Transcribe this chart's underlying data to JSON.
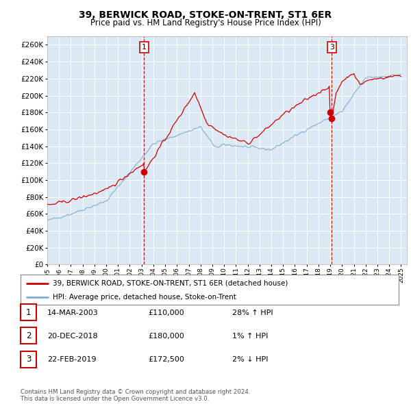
{
  "title": "39, BERWICK ROAD, STOKE-ON-TRENT, ST1 6ER",
  "subtitle": "Price paid vs. HM Land Registry's House Price Index (HPI)",
  "background_color": "#dce9f5",
  "fig_bg_color": "#ffffff",
  "ylim": [
    0,
    270000
  ],
  "yticks": [
    0,
    20000,
    40000,
    60000,
    80000,
    100000,
    120000,
    140000,
    160000,
    180000,
    200000,
    220000,
    240000,
    260000
  ],
  "x_start_year": 1995,
  "x_end_year": 2025,
  "line_color_price": "#cc0000",
  "line_color_hpi": "#7bafd4",
  "marker_color": "#cc0000",
  "vline_color": "#cc0000",
  "legend1": "39, BERWICK ROAD, STOKE-ON-TRENT, ST1 6ER (detached house)",
  "legend2": "HPI: Average price, detached house, Stoke-on-Trent",
  "footnote": "Contains HM Land Registry data © Crown copyright and database right 2024.\nThis data is licensed under the Open Government Licence v3.0.",
  "table_rows": [
    {
      "num": "1",
      "date": "14-MAR-2003",
      "price": "£110,000",
      "pct": "28% ↑ HPI"
    },
    {
      "num": "2",
      "date": "20-DEC-2018",
      "price": "£180,000",
      "pct": "1% ↑ HPI"
    },
    {
      "num": "3",
      "date": "22-FEB-2019",
      "price": "£172,500",
      "pct": "2% ↓ HPI"
    }
  ],
  "t1_year": 2003.21,
  "t1_price": 110000,
  "t2_year": 2018.97,
  "t2_price": 180000,
  "t3_year": 2019.13,
  "t3_price": 172500
}
